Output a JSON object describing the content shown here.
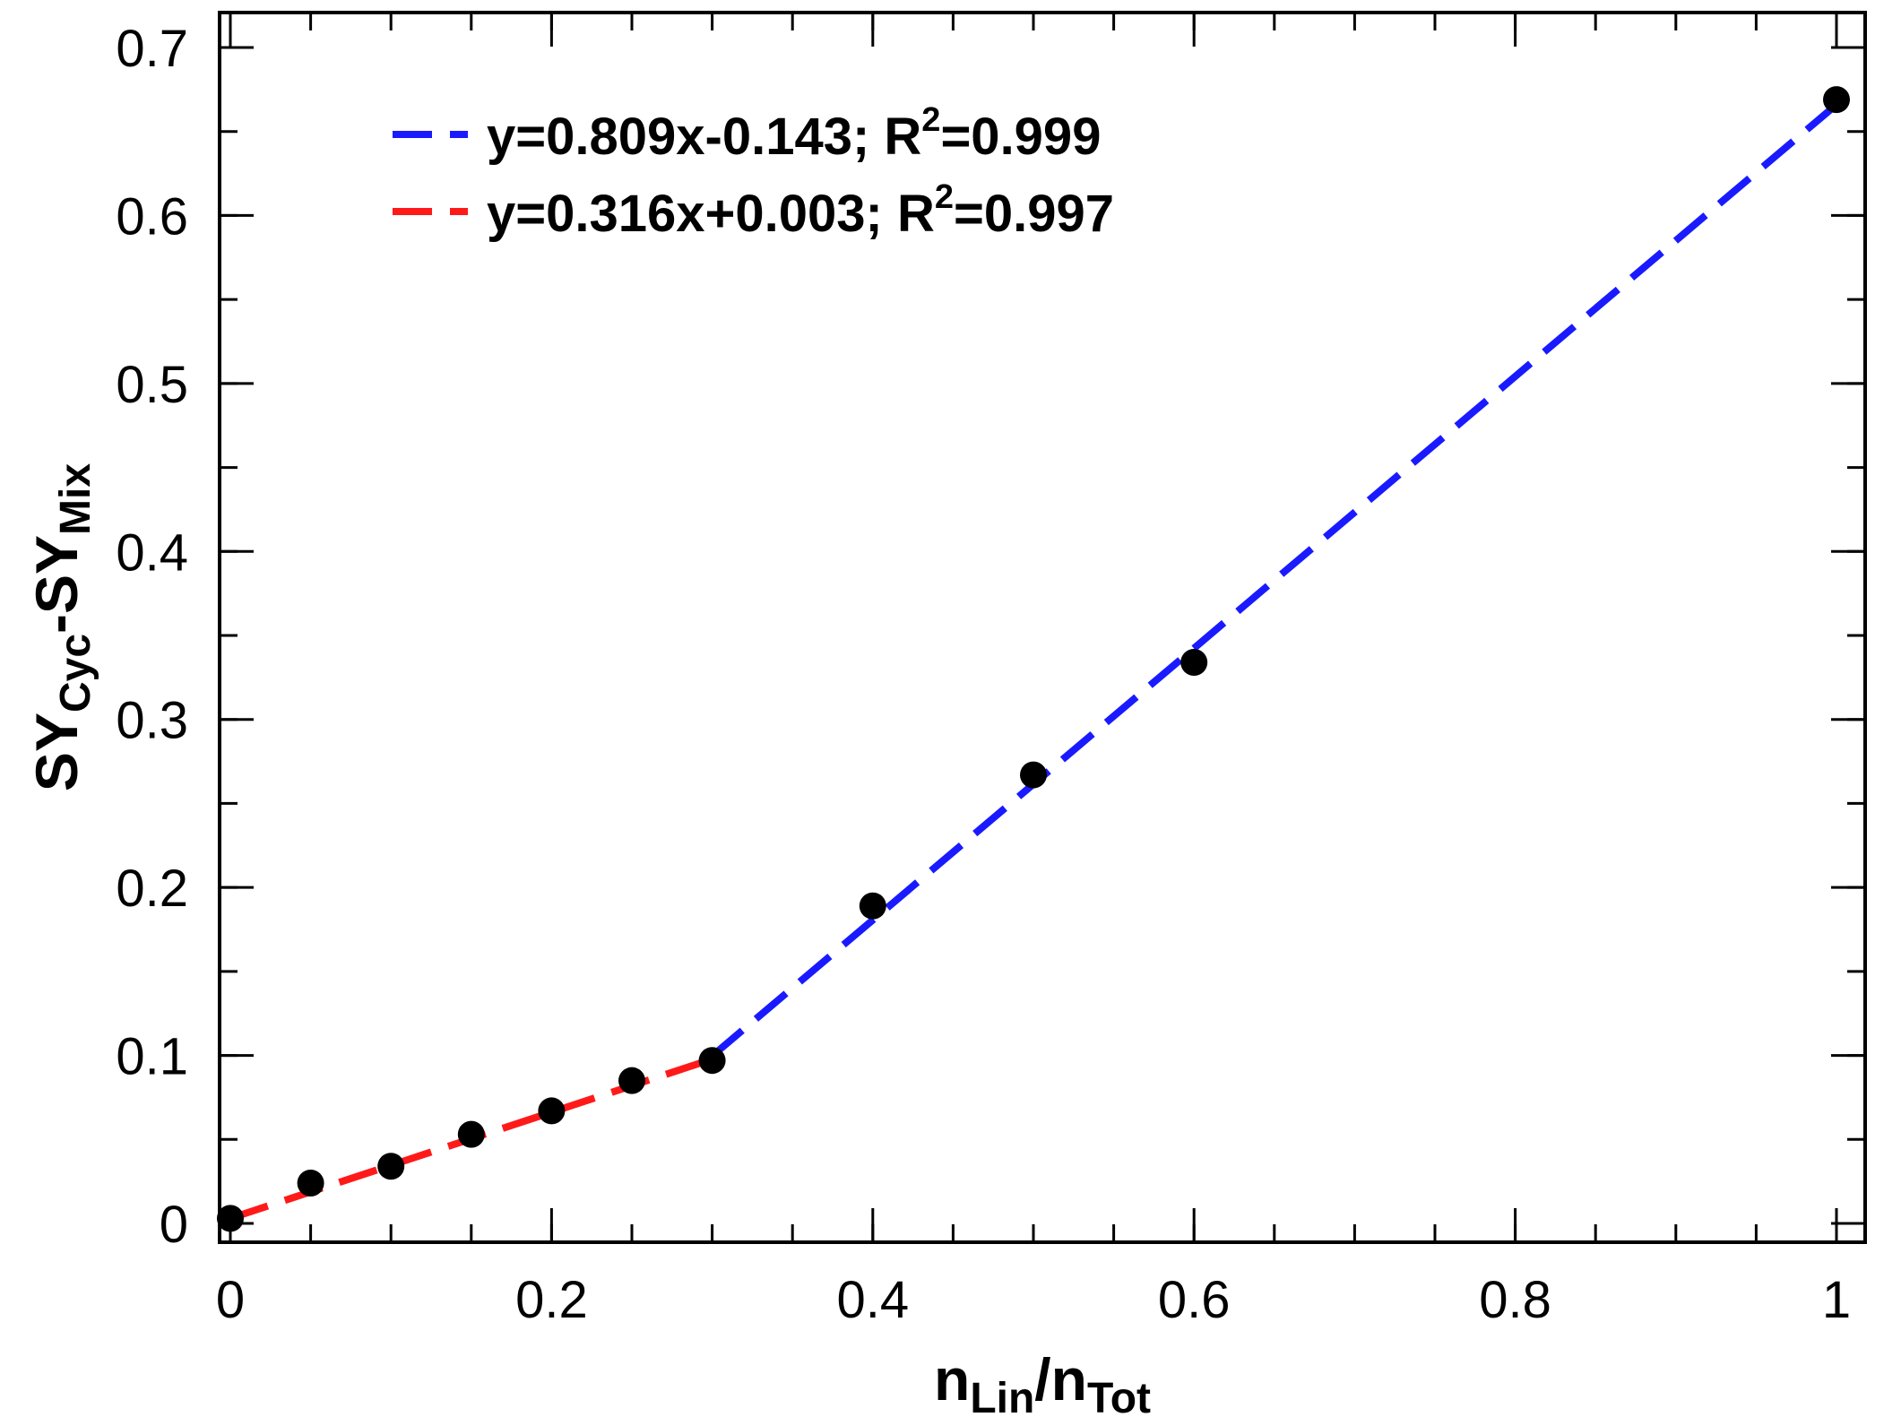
{
  "chart_data": {
    "type": "scatter",
    "title": "",
    "xlabel": {
      "main": "n",
      "sub1": "Lin",
      "slash": "/n",
      "sub2": "Tot"
    },
    "ylabel": {
      "p1": "SY",
      "s1": "Cyc",
      "p2": "-SY",
      "s2": "Mix"
    },
    "xlim": [
      0,
      1
    ],
    "ylim": [
      0,
      0.7
    ],
    "x_ticks": [
      0,
      0.2,
      0.4,
      0.6,
      0.8,
      1
    ],
    "x_tick_labels": [
      "0",
      "0.2",
      "0.4",
      "0.6",
      "0.8",
      "1"
    ],
    "y_ticks": [
      0,
      0.1,
      0.2,
      0.3,
      0.4,
      0.5,
      0.6,
      0.7
    ],
    "y_tick_labels": [
      "0",
      "0.1",
      "0.2",
      "0.3",
      "0.4",
      "0.5",
      "0.6",
      "0.7"
    ],
    "x_minor_step": 0.05,
    "y_minor_step": 0.05,
    "grid": false,
    "legend_position": "top-left",
    "points": {
      "color": "#000000",
      "x": [
        0,
        0.05,
        0.1,
        0.15,
        0.2,
        0.25,
        0.3,
        0.4,
        0.5,
        0.6,
        1.0
      ],
      "y": [
        0.003,
        0.024,
        0.034,
        0.053,
        0.067,
        0.085,
        0.097,
        0.189,
        0.267,
        0.334,
        0.669
      ]
    },
    "series": [
      {
        "color": "#1a1aff",
        "slope": 0.809,
        "intercept": -0.143,
        "x_range": [
          0.3,
          1.0
        ],
        "legend": {
          "prefix": "y=0.809x-0.143; R",
          "sup": "2",
          "suffix": "=0.999"
        }
      },
      {
        "color": "#ff1a1a",
        "slope": 0.316,
        "intercept": 0.003,
        "x_range": [
          0,
          0.3
        ],
        "legend": {
          "prefix": "y=0.316x+0.003; R",
          "sup": "2",
          "suffix": "=0.997"
        }
      }
    ]
  }
}
